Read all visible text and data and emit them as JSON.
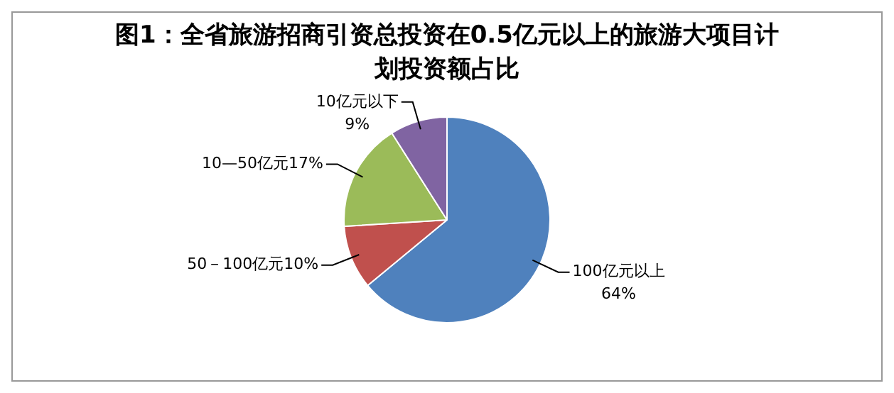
{
  "chart_data": {
    "type": "pie",
    "title": "图1：全省旅游招商引资总投资在0.5亿元以上的旅游大项目计划投资额占比",
    "categories": [
      "100亿元以上",
      "50－100亿元",
      "10—50亿元",
      "10亿元以下"
    ],
    "values": [
      64,
      10,
      17,
      9
    ],
    "colors": [
      "#4f81bd",
      "#c0504d",
      "#9bbb59",
      "#8064a2"
    ],
    "value_labels": [
      "64%",
      "10%",
      "17%",
      "9%"
    ],
    "legend": false
  }
}
